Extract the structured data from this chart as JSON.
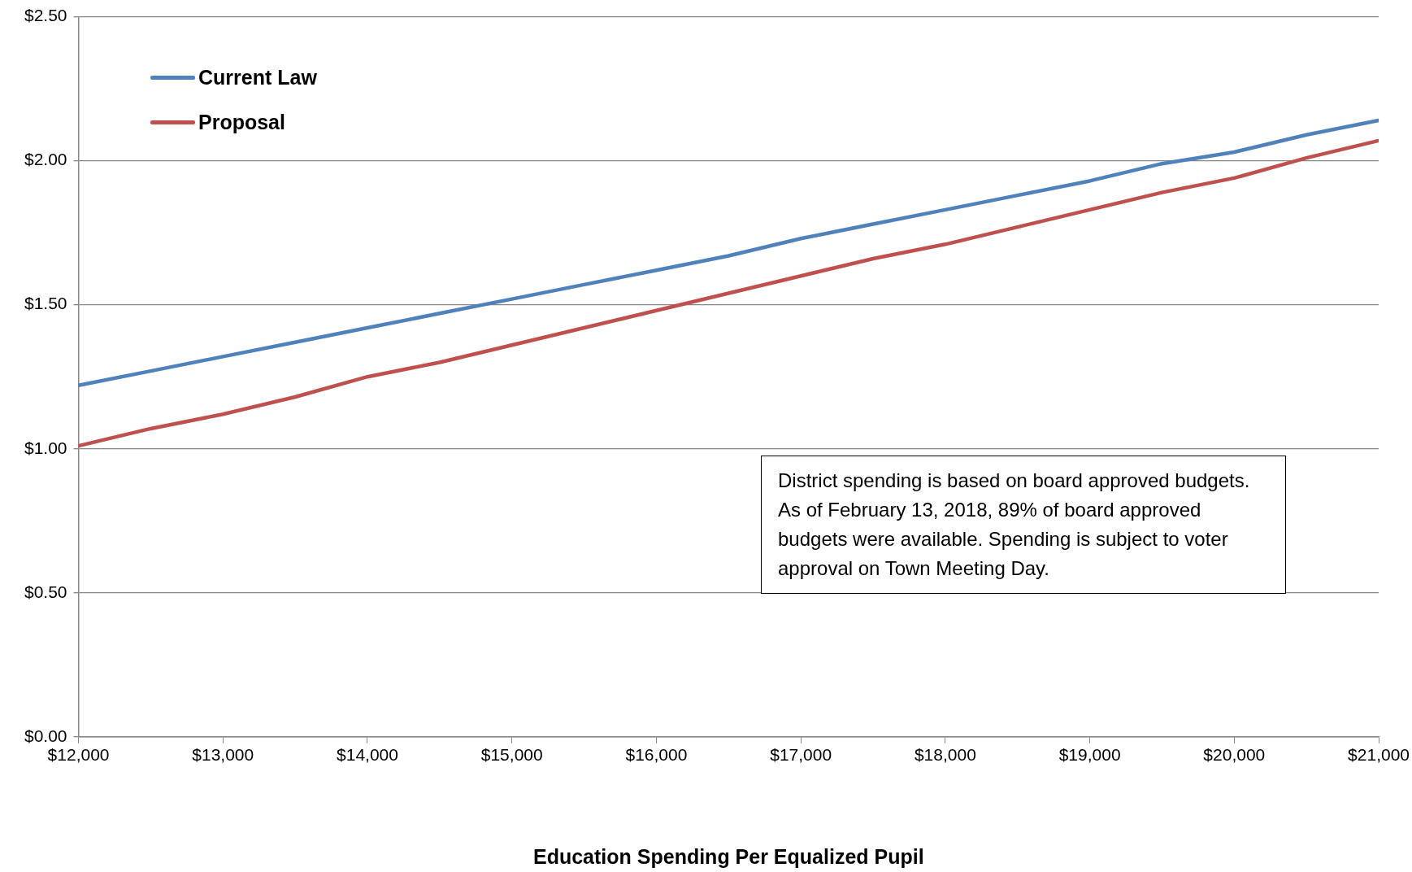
{
  "chart_data": {
    "type": "line",
    "xlabel": "Education Spending Per Equalized Pupil",
    "x": [
      12000,
      12500,
      13000,
      13500,
      14000,
      14500,
      15000,
      15500,
      16000,
      16500,
      17000,
      17500,
      18000,
      18500,
      19000,
      19500,
      20000,
      20500,
      21000
    ],
    "series": [
      {
        "name": "Current Law",
        "color": "#4f81bd",
        "values": [
          1.22,
          1.27,
          1.32,
          1.37,
          1.42,
          1.47,
          1.52,
          1.57,
          1.62,
          1.67,
          1.73,
          1.78,
          1.83,
          1.88,
          1.93,
          1.99,
          2.03,
          2.09,
          2.14
        ]
      },
      {
        "name": "Proposal",
        "color": "#c0504d",
        "values": [
          1.01,
          1.07,
          1.12,
          1.18,
          1.25,
          1.3,
          1.36,
          1.42,
          1.48,
          1.54,
          1.6,
          1.66,
          1.71,
          1.77,
          1.83,
          1.89,
          1.94,
          2.01,
          2.07
        ]
      }
    ],
    "xlim": [
      12000,
      21000
    ],
    "xticks": [
      {
        "value": 12000,
        "label": "$12,000"
      },
      {
        "value": 13000,
        "label": "$13,000"
      },
      {
        "value": 14000,
        "label": "$14,000"
      },
      {
        "value": 15000,
        "label": "$15,000"
      },
      {
        "value": 16000,
        "label": "$16,000"
      },
      {
        "value": 17000,
        "label": "$17,000"
      },
      {
        "value": 18000,
        "label": "$18,000"
      },
      {
        "value": 19000,
        "label": "$19,000"
      },
      {
        "value": 20000,
        "label": "$20,000"
      },
      {
        "value": 21000,
        "label": "$21,000"
      }
    ],
    "ylim": [
      0,
      2.5
    ],
    "yticks": [
      {
        "value": 0,
        "label": "$0.00"
      },
      {
        "value": 0.5,
        "label": "$0.50"
      },
      {
        "value": 1,
        "label": "$1.00"
      },
      {
        "value": 1.5,
        "label": "$1.50"
      },
      {
        "value": 2,
        "label": "$2.00"
      },
      {
        "value": 2.5,
        "label": "$2.50"
      }
    ],
    "grid": "y",
    "legend": "top left",
    "marker": "none",
    "line_style": "solid",
    "annotations": [
      "District spending is based on board approved budgets. As of February 13, 2018, 89% of board approved budgets were available. Spending is subject to voter approval on Town Meeting Day."
    ]
  }
}
